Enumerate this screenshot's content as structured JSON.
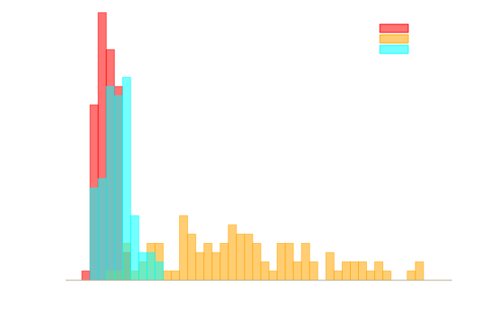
{
  "chart_data": {
    "type": "histogram",
    "bin_width": 1,
    "x_range": [
      0,
      47.5
    ],
    "ylim": [
      0,
      29.5
    ],
    "grid": false,
    "legend": {
      "position": "top-right",
      "entries_labeled": false
    },
    "axes": {
      "x_baseline_visible": true,
      "ticks_visible": false,
      "y_axis_visible": false
    },
    "colors": {
      "baseline": "#b0a98a"
    },
    "series": [
      {
        "color": "#ff0000",
        "opacity": 0.55,
        "start": 2,
        "counts": [
          1,
          19,
          29,
          25,
          21,
          3
        ]
      },
      {
        "color": "#ffa500",
        "opacity": 0.55,
        "start": 3,
        "counts": [
          0,
          0,
          1,
          1,
          4,
          1,
          2,
          4,
          4,
          1,
          1,
          7,
          5,
          3,
          4,
          3,
          4,
          6,
          5,
          5,
          4,
          2,
          1,
          4,
          4,
          2,
          4,
          2,
          0,
          3,
          1,
          2,
          2,
          2,
          1,
          2,
          1,
          0,
          0,
          1,
          2
        ]
      },
      {
        "color": "#00ffff",
        "opacity": 0.55,
        "start": 3,
        "counts": [
          10,
          11,
          21,
          20,
          22,
          7,
          3,
          3,
          2
        ]
      }
    ]
  }
}
